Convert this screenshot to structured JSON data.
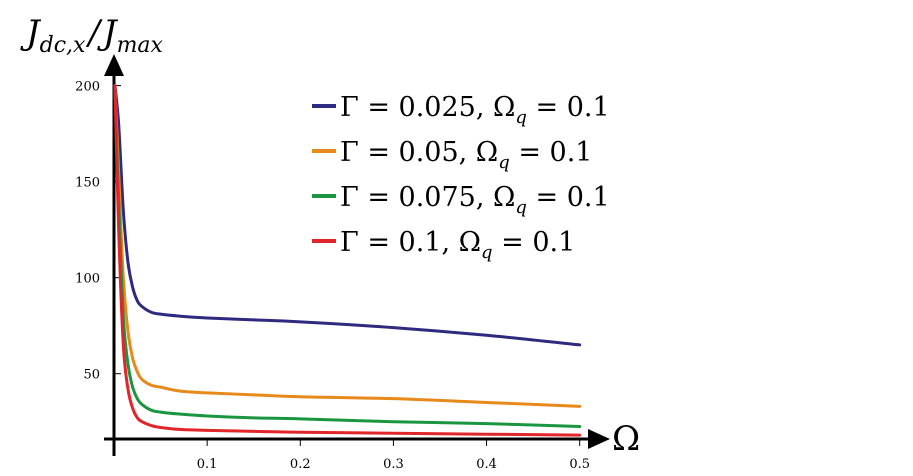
{
  "chart_data": {
    "type": "line",
    "title": "",
    "ylabel": "J_{dc,x}/J_{max}",
    "ylabel_parts": {
      "j1": "J",
      "sub1": "dc,x",
      "slash": "/",
      "j2": "J",
      "sub2": "max"
    },
    "xlabel": "Ω",
    "xlim": [
      0,
      0.51
    ],
    "ylim": [
      16,
      205
    ],
    "xticks": [
      0.1,
      0.2,
      0.3,
      0.4,
      0.5
    ],
    "xtick_labels": [
      "0.1",
      "0.2",
      "0.3",
      "0.4",
      "0.5"
    ],
    "yticks": [
      50,
      100,
      150,
      200
    ],
    "ytick_labels": [
      "50",
      "100",
      "150",
      "200"
    ],
    "grid": false,
    "legend_position": "top-right",
    "series": [
      {
        "name": "Γ = 0.025, Ω_q = 0.1",
        "legend": {
          "pre": "Γ = 0.025, Ω",
          "sub": "q",
          "post": " = 0.1"
        },
        "color": "#2e2a7f",
        "x": [
          0.001,
          0.005,
          0.01,
          0.015,
          0.02,
          0.025,
          0.03,
          0.04,
          0.05,
          0.07,
          0.1,
          0.15,
          0.2,
          0.3,
          0.4,
          0.5
        ],
        "y": [
          200,
          180,
          135,
          108,
          95,
          88,
          85,
          82,
          81,
          80,
          79,
          78,
          77,
          74,
          70,
          65
        ]
      },
      {
        "name": "Γ = 0.05, Ω_q = 0.1",
        "legend": {
          "pre": "Γ = 0.05, Ω",
          "sub": "q",
          "post": " = 0.1"
        },
        "color": "#e8891c",
        "x": [
          0.001,
          0.005,
          0.01,
          0.015,
          0.02,
          0.025,
          0.03,
          0.04,
          0.05,
          0.07,
          0.1,
          0.15,
          0.2,
          0.3,
          0.4,
          0.5
        ],
        "y": [
          200,
          155,
          100,
          72,
          58,
          51,
          47,
          44,
          43,
          41,
          40,
          39,
          38,
          37,
          35,
          33
        ]
      },
      {
        "name": "Γ = 0.075, Ω_q = 0.1",
        "legend": {
          "pre": "Γ = 0.075, Ω",
          "sub": "q",
          "post": " = 0.1"
        },
        "color": "#1a9641",
        "x": [
          0.001,
          0.005,
          0.01,
          0.015,
          0.02,
          0.025,
          0.03,
          0.04,
          0.05,
          0.07,
          0.1,
          0.15,
          0.2,
          0.3,
          0.4,
          0.5
        ],
        "y": [
          200,
          140,
          80,
          55,
          43,
          37,
          34,
          31,
          30,
          29,
          28,
          27,
          26.5,
          25,
          24,
          22.5
        ]
      },
      {
        "name": "Γ = 0.1, Ω_q = 0.1",
        "legend": {
          "pre": "Γ = 0.1, Ω",
          "sub": "q",
          "post": " = 0.1"
        },
        "color": "#e0262b",
        "x": [
          0.001,
          0.005,
          0.01,
          0.015,
          0.02,
          0.025,
          0.03,
          0.04,
          0.05,
          0.07,
          0.1,
          0.15,
          0.2,
          0.3,
          0.4,
          0.5
        ],
        "y": [
          200,
          125,
          65,
          42,
          32,
          27,
          25,
          23,
          22,
          21,
          20.5,
          20,
          19.5,
          19,
          18.5,
          18
        ]
      }
    ]
  }
}
